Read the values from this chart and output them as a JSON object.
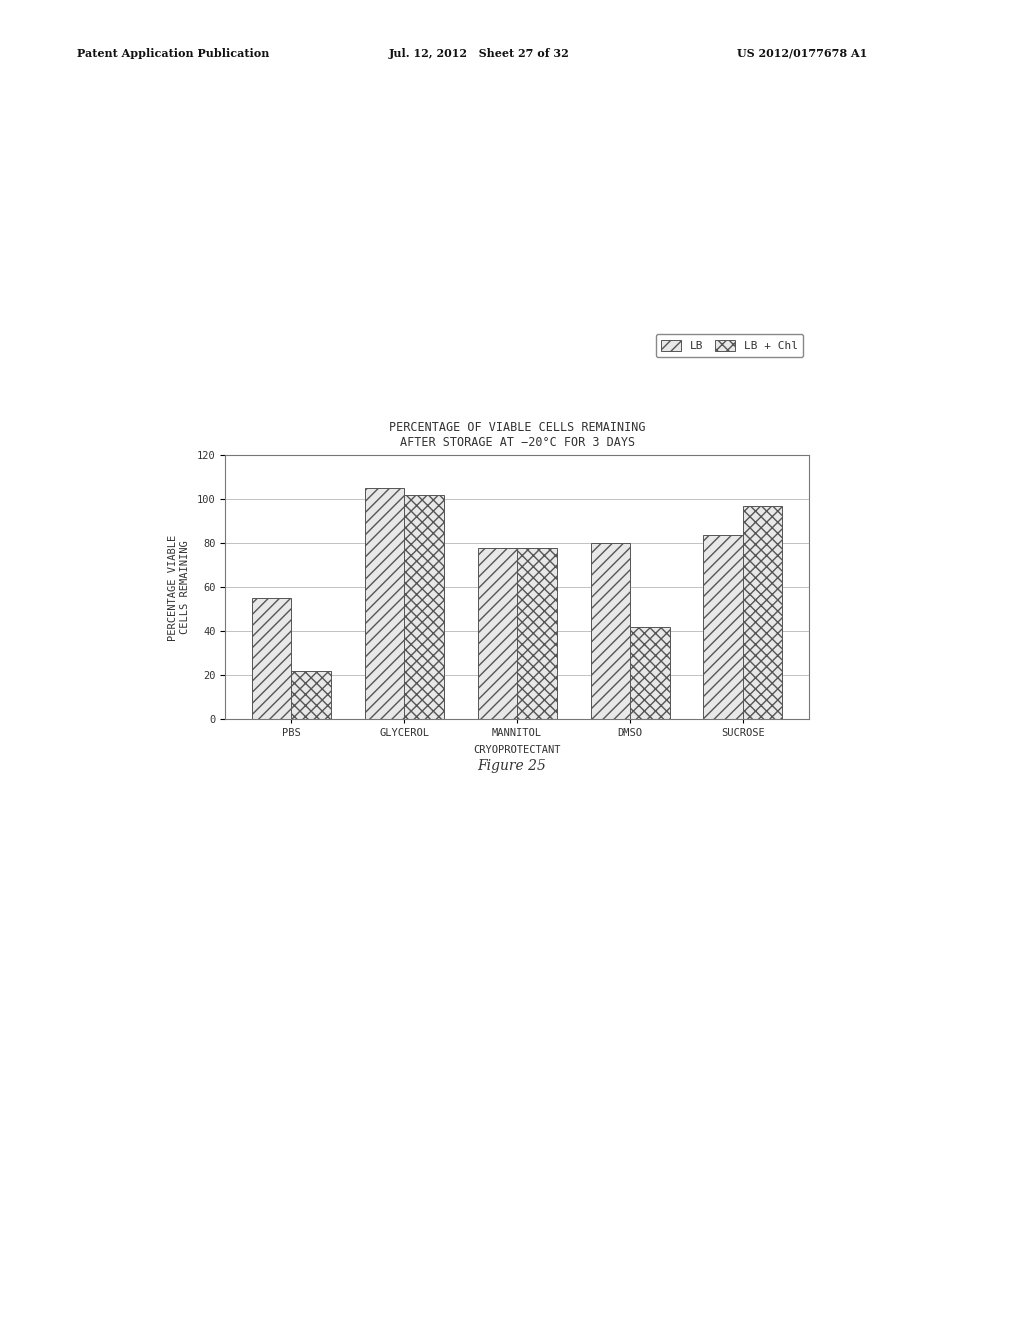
{
  "categories": [
    "PBS",
    "GLYCEROL",
    "MANNITOL",
    "DMSO",
    "SUCROSE"
  ],
  "lb_values": [
    55,
    105,
    78,
    80,
    84
  ],
  "lb_chl_values": [
    22,
    102,
    78,
    42,
    97
  ],
  "title_line1": "PERCENTAGE OF VIABLE CELLS REMAINING",
  "title_line2": "AFTER STORAGE AT −20°C FOR 3 DAYS",
  "ylabel_line1": "PERCENTAGE VIABLE",
  "ylabel_line2": "CELLS REMAINING",
  "xlabel": "CRYOPROTECTANT",
  "ylim": [
    0,
    120
  ],
  "yticks": [
    0,
    20,
    40,
    60,
    80,
    100,
    120
  ],
  "legend_lb": "LB",
  "legend_lb_chl": "LB + Chl",
  "bar_width": 0.35,
  "figure_caption": "Figure 25",
  "bg_color": "#ffffff",
  "bar_edge_color": "#555555",
  "hatch_lb": "///",
  "hatch_lb_chl": "xxx",
  "bar_face_color": "#e8e8e8",
  "grid_color": "#aaaaaa",
  "font_color": "#333333",
  "title_fontsize": 8.5,
  "axis_label_fontsize": 7.5,
  "tick_fontsize": 7.5,
  "legend_fontsize": 8,
  "caption_fontsize": 10,
  "header_left": "Patent Application Publication",
  "header_mid": "Jul. 12, 2012   Sheet 27 of 32",
  "header_right": "US 2012/0177678 A1"
}
